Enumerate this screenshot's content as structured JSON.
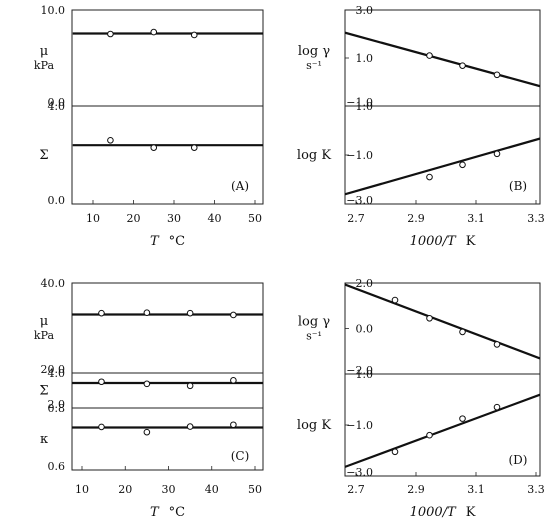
{
  "chart_data": [
    {
      "id": "A",
      "type": "scatter",
      "tag": "(A)",
      "xlabel": {
        "sym": "T",
        "unit": "°C"
      },
      "xlim": [
        5,
        52
      ],
      "xticks": [
        "10",
        "20",
        "30",
        "40",
        "50"
      ],
      "panels": [
        {
          "ylabel": "μ",
          "yunit": "kPa",
          "ylim": [
            0,
            10
          ],
          "yticks": [
            {
              "v": 10,
              "t": "10.0"
            },
            {
              "v": 0,
              "t": "0.0"
            }
          ],
          "points": [
            {
              "x": 14.3,
              "y": 7.5
            },
            {
              "x": 25,
              "y": 7.7
            },
            {
              "x": 35,
              "y": 7.4
            }
          ],
          "fit": [
            {
              "x": 5,
              "y": 7.55
            },
            {
              "x": 52,
              "y": 7.55
            }
          ]
        },
        {
          "ylabel": "Σ",
          "yunit": "",
          "ylim": [
            0,
            4
          ],
          "yticks": [
            {
              "v": 4,
              "t": "4.0"
            },
            {
              "v": 0,
              "t": "0.0"
            }
          ],
          "points": [
            {
              "x": 14.3,
              "y": 2.6
            },
            {
              "x": 25,
              "y": 2.3
            },
            {
              "x": 35,
              "y": 2.3
            }
          ],
          "fit": [
            {
              "x": 5,
              "y": 2.4
            },
            {
              "x": 52,
              "y": 2.4
            }
          ]
        }
      ]
    },
    {
      "id": "B",
      "type": "scatter",
      "tag": "(B)",
      "xlabel": {
        "sym": "1000/T",
        "unit": "K"
      },
      "xlim": [
        2.65,
        3.35
      ],
      "xticks": [
        "2.7",
        "2.9",
        "3.1",
        "3.3"
      ],
      "panels": [
        {
          "ylabel": "log γ",
          "yunit": "s⁻¹",
          "ylim": [
            -1,
            3
          ],
          "yticks": [
            {
              "v": 3,
              "t": "3.0"
            },
            {
              "v": 1,
              "t": "1.0"
            },
            {
              "v": -1,
              "t": "−1.0"
            }
          ],
          "points": [
            {
              "x": 2.945,
              "y": 1.1
            },
            {
              "x": 3.055,
              "y": 0.68
            },
            {
              "x": 3.17,
              "y": 0.3
            }
          ],
          "fit": [
            {
              "x": 2.65,
              "y": 2.1
            },
            {
              "x": 3.35,
              "y": -0.3
            }
          ]
        },
        {
          "ylabel": "log K",
          "yunit": "",
          "ylim": [
            -3,
            1
          ],
          "yticks": [
            {
              "v": 1,
              "t": "1.0"
            },
            {
              "v": -1,
              "t": "−1.0"
            },
            {
              "v": -3,
              "t": "−3.0"
            }
          ],
          "points": [
            {
              "x": 2.945,
              "y": -1.9
            },
            {
              "x": 3.055,
              "y": -1.4
            },
            {
              "x": 3.17,
              "y": -0.95
            }
          ],
          "fit": [
            {
              "x": 2.65,
              "y": -2.65
            },
            {
              "x": 3.35,
              "y": -0.2
            }
          ]
        }
      ]
    },
    {
      "id": "C",
      "type": "scatter",
      "tag": "(C)",
      "xlabel": {
        "sym": "T",
        "unit": "°C"
      },
      "xlim": [
        7,
        52
      ],
      "xticks": [
        "10",
        "20",
        "30",
        "40",
        "50"
      ],
      "panels": [
        {
          "ylabel": "μ",
          "yunit": "kPa",
          "ylim": [
            20,
            40
          ],
          "yticks": [
            {
              "v": 40,
              "t": "40.0"
            },
            {
              "v": 20,
              "t": "20.0"
            }
          ],
          "points": [
            {
              "x": 14.5,
              "y": 33.3
            },
            {
              "x": 25,
              "y": 33.4
            },
            {
              "x": 35,
              "y": 33.3
            },
            {
              "x": 45,
              "y": 32.9
            }
          ],
          "fit": [
            {
              "x": 7,
              "y": 33.0
            },
            {
              "x": 52,
              "y": 33.0
            }
          ]
        },
        {
          "ylabel": "Σ",
          "yunit": "",
          "ylim": [
            2,
            4
          ],
          "yticks": [
            {
              "v": 4,
              "t": "4.0"
            },
            {
              "v": 2,
              "t": "2.0"
            }
          ],
          "points": [
            {
              "x": 14.5,
              "y": 3.5
            },
            {
              "x": 25,
              "y": 3.38
            },
            {
              "x": 35,
              "y": 3.27
            },
            {
              "x": 45,
              "y": 3.58
            }
          ],
          "fit": [
            {
              "x": 7,
              "y": 3.43
            },
            {
              "x": 52,
              "y": 3.43
            }
          ]
        },
        {
          "ylabel": "κ",
          "yunit": "",
          "ylim": [
            0.6,
            0.8
          ],
          "yticks": [
            {
              "v": 0.8,
              "t": "0.8"
            },
            {
              "v": 0.6,
              "t": "0.6"
            }
          ],
          "points": [
            {
              "x": 14.5,
              "y": 0.739
            },
            {
              "x": 25,
              "y": 0.722
            },
            {
              "x": 35,
              "y": 0.74
            },
            {
              "x": 45,
              "y": 0.746
            }
          ],
          "fit": [
            {
              "x": 7,
              "y": 0.737
            },
            {
              "x": 52,
              "y": 0.737
            }
          ]
        }
      ]
    },
    {
      "id": "D",
      "type": "scatter",
      "tag": "(D)",
      "xlabel": {
        "sym": "1000/T",
        "unit": "K"
      },
      "xlim": [
        2.65,
        3.35
      ],
      "xticks": [
        "2.7",
        "2.9",
        "3.1",
        "3.3"
      ],
      "panels": [
        {
          "ylabel": "log γ",
          "yunit": "s⁻¹",
          "ylim": [
            -2,
            2
          ],
          "yticks": [
            {
              "v": 2,
              "t": "2.0"
            },
            {
              "v": 0,
              "t": "0.0"
            },
            {
              "v": -2,
              "t": "−2.0"
            }
          ],
          "points": [
            {
              "x": 2.83,
              "y": 1.25
            },
            {
              "x": 2.945,
              "y": 0.45
            },
            {
              "x": 3.055,
              "y": -0.15
            },
            {
              "x": 3.17,
              "y": -0.7
            }
          ],
          "fit": [
            {
              "x": 2.65,
              "y": 2.0
            },
            {
              "x": 3.35,
              "y": -1.5
            }
          ]
        },
        {
          "ylabel": "log K",
          "yunit": "",
          "ylim": [
            -3,
            1
          ],
          "yticks": [
            {
              "v": 1,
              "t": "1.0"
            },
            {
              "v": -1,
              "t": "−1.0"
            },
            {
              "v": -3,
              "t": "−3.0"
            }
          ],
          "points": [
            {
              "x": 2.83,
              "y": -2.05
            },
            {
              "x": 2.945,
              "y": -1.4
            },
            {
              "x": 3.055,
              "y": -0.75
            },
            {
              "x": 3.17,
              "y": -0.3
            }
          ],
          "fit": [
            {
              "x": 2.65,
              "y": -2.7
            },
            {
              "x": 3.35,
              "y": 0.35
            }
          ]
        }
      ]
    }
  ]
}
